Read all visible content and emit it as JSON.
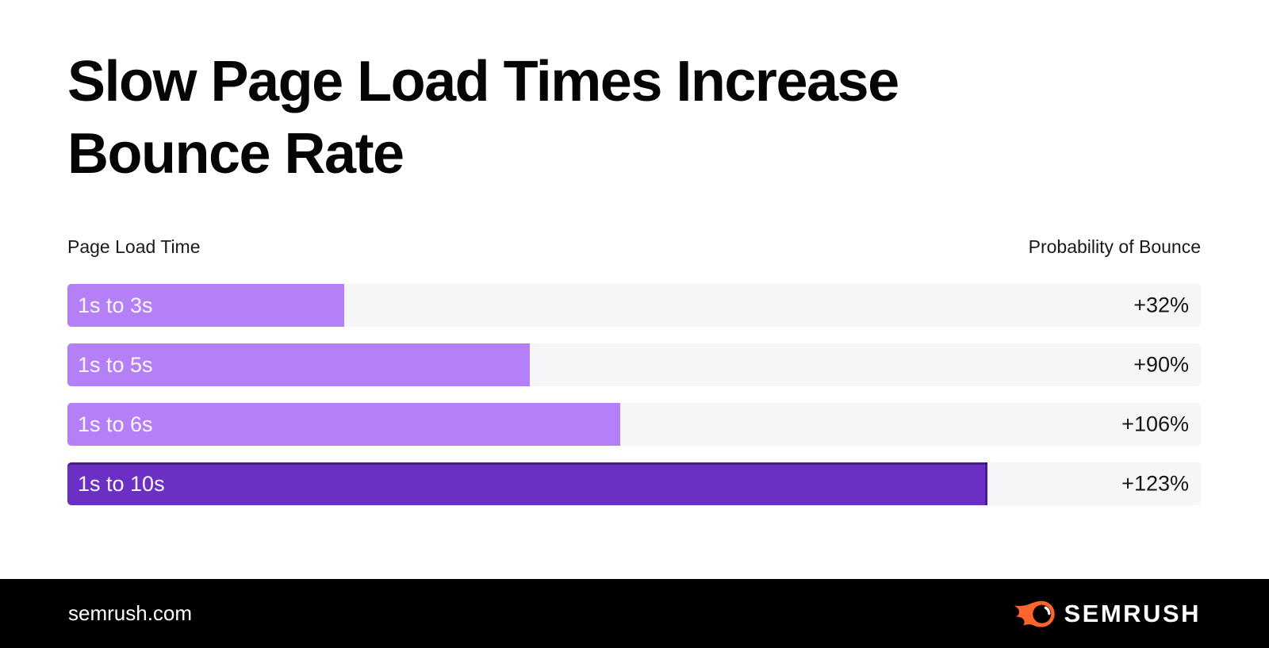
{
  "page": {
    "title_line1": "Slow Page Load Times Increase",
    "title_line2": "Bounce Rate"
  },
  "chart_data": {
    "type": "bar",
    "orientation": "horizontal",
    "title": "Slow Page Load Times Increase Bounce Rate",
    "left_header": "Page Load Time",
    "right_header": "Probability of Bounce",
    "categories": [
      "1s to 3s",
      "1s to 5s",
      "1s to 6s",
      "1s to 10s"
    ],
    "series": [
      {
        "name": "Probability of Bounce",
        "values": [
          32,
          90,
          106,
          123
        ]
      }
    ],
    "value_labels": [
      "+32%",
      "+90%",
      "+106%",
      "+123%"
    ],
    "bar_width_pct": [
      24.4,
      40.8,
      48.8,
      81.2
    ],
    "bar_colors": [
      "#B57FF7",
      "#B57FF7",
      "#B57FF7",
      "#6B2FC4"
    ],
    "emphasis": [
      false,
      false,
      false,
      true
    ],
    "track_color": "#F6F5F7",
    "legend": "none",
    "grid": "off",
    "value_label_position": "right-inside-track",
    "category_label_position": "inside-bar"
  },
  "footer": {
    "site": "semrush.com",
    "brand": "SEMRUSH"
  },
  "colors": {
    "accent_light_purple": "#B57FF7",
    "accent_dark_purple": "#6B2FC4",
    "dark_bar_edge": "#4D1C9C",
    "brand_orange": "#FF642D",
    "footer_bg": "#000000",
    "track": "#F6F5F7",
    "text_dark": "#151515",
    "text_on_bar": "#FAF8FE"
  }
}
